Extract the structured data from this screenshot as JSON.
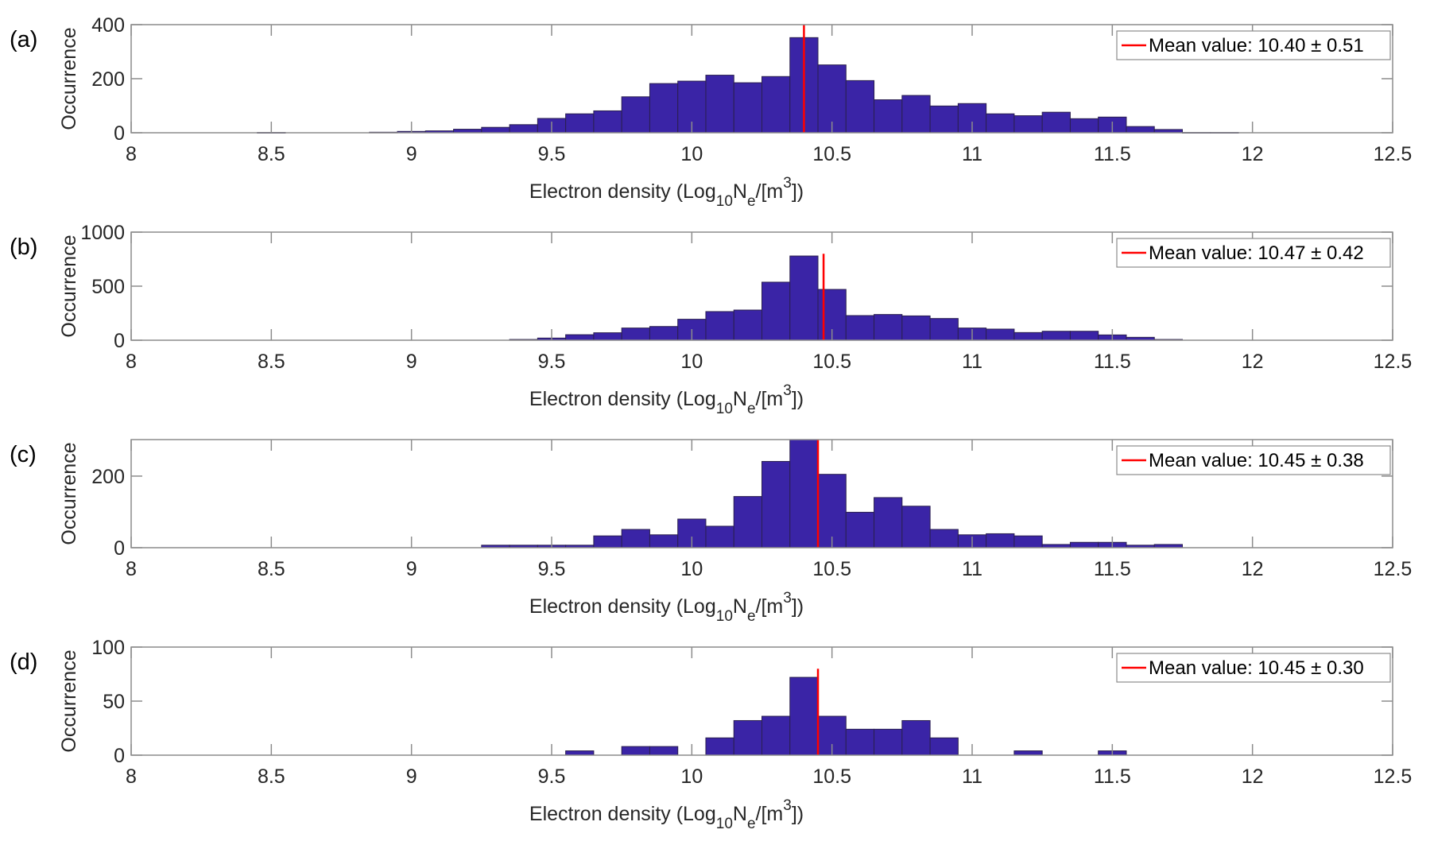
{
  "figure": {
    "bar_color": "#3A24A6",
    "bar_edge_color": "#2A1F4F",
    "mean_line_color": "#FF0000",
    "axis_color": "#8C8C8C"
  },
  "chart_data": [
    {
      "type": "bar",
      "panel_label": "(a)",
      "title": "",
      "xlabel": "Electron density (Log10 Ne/[m3])",
      "xlabel_parts": {
        "main": "Electron density (Log",
        "sub1": "10",
        "mid": "N",
        "sub2": "e",
        "tail": "/[m",
        "sup": "3",
        "end": "])"
      },
      "ylabel": "Occurrence",
      "xlim": [
        8,
        12.5
      ],
      "ylim": [
        0,
        400
      ],
      "xticks": [
        "8",
        "8.5",
        "9",
        "9.5",
        "10",
        "10.5",
        "11",
        "11.5",
        "12",
        "12.5"
      ],
      "yticks": [
        "0",
        "200",
        "400"
      ],
      "bin_width": 0.1,
      "bin_centers": [
        8.5,
        8.9,
        9.0,
        9.1,
        9.2,
        9.3,
        9.4,
        9.5,
        9.6,
        9.7,
        9.8,
        9.9,
        10.0,
        10.1,
        10.2,
        10.3,
        10.4,
        10.5,
        10.6,
        10.7,
        10.8,
        10.9,
        11.0,
        11.1,
        11.2,
        11.3,
        11.4,
        11.5,
        11.6,
        11.7,
        11.8,
        11.9
      ],
      "values": [
        1,
        2,
        5,
        7,
        13,
        20,
        30,
        53,
        70,
        81,
        133,
        182,
        191,
        213,
        185,
        208,
        352,
        251,
        193,
        122,
        138,
        99,
        108,
        70,
        63,
        76,
        52,
        58,
        23,
        12,
        1,
        1
      ],
      "mean": 10.4,
      "std": 0.51,
      "mean_line_top": 400,
      "legend": "Mean value: 10.40 ± 0.51",
      "legend_position": "top-right"
    },
    {
      "type": "bar",
      "panel_label": "(b)",
      "title": "",
      "xlabel": "Electron density (Log10 Ne/[m3])",
      "xlabel_parts": {
        "main": "Electron density (Log",
        "sub1": "10",
        "mid": "N",
        "sub2": "e",
        "tail": "/[m",
        "sup": "3",
        "end": "])"
      },
      "ylabel": "Occurrence",
      "xlim": [
        8,
        12.5
      ],
      "ylim": [
        0,
        1000
      ],
      "xticks": [
        "8",
        "8.5",
        "9",
        "9.5",
        "10",
        "10.5",
        "11",
        "11.5",
        "12",
        "12.5"
      ],
      "yticks": [
        "0",
        "500",
        "1000"
      ],
      "bin_width": 0.1,
      "bin_centers": [
        9.4,
        9.5,
        9.6,
        9.7,
        9.8,
        9.9,
        10.0,
        10.1,
        10.2,
        10.3,
        10.4,
        10.5,
        10.6,
        10.7,
        10.8,
        10.9,
        11.0,
        11.1,
        11.2,
        11.3,
        11.4,
        11.5,
        11.6,
        11.7
      ],
      "values": [
        7,
        20,
        51,
        69,
        113,
        127,
        194,
        265,
        279,
        537,
        779,
        470,
        228,
        238,
        225,
        201,
        113,
        103,
        71,
        83,
        83,
        49,
        27,
        7
      ],
      "mean": 10.47,
      "std": 0.42,
      "mean_line_top": 800,
      "legend": "Mean value: 10.47 ± 0.42",
      "legend_position": "top-right"
    },
    {
      "type": "bar",
      "panel_label": "(c)",
      "title": "",
      "xlabel": "Electron density (Log10 Ne/[m3])",
      "xlabel_parts": {
        "main": "Electron density (Log",
        "sub1": "10",
        "mid": "N",
        "sub2": "e",
        "tail": "/[m",
        "sup": "3",
        "end": "])"
      },
      "ylabel": "Occurrence",
      "xlim": [
        8,
        12.5
      ],
      "ylim": [
        0,
        302
      ],
      "xticks": [
        "8",
        "8.5",
        "9",
        "9.5",
        "10",
        "10.5",
        "11",
        "11.5",
        "12",
        "12.5"
      ],
      "yticks": [
        "0",
        "200"
      ],
      "ytick_values": [
        0,
        200
      ],
      "bin_width": 0.1,
      "bin_centers": [
        9.3,
        9.4,
        9.5,
        9.6,
        9.7,
        9.8,
        9.9,
        10.0,
        10.1,
        10.2,
        10.3,
        10.4,
        10.5,
        10.6,
        10.7,
        10.8,
        10.9,
        11.0,
        11.1,
        11.2,
        11.3,
        11.4,
        11.5,
        11.6,
        11.7
      ],
      "values": [
        7,
        7,
        7,
        7,
        33,
        51,
        36,
        80,
        60,
        143,
        241,
        302,
        205,
        99,
        140,
        116,
        51,
        36,
        39,
        33,
        9,
        15,
        15,
        7,
        9
      ],
      "mean": 10.45,
      "std": 0.38,
      "mean_line_top": 302,
      "legend": "Mean value: 10.45 ± 0.38",
      "legend_position": "top-right"
    },
    {
      "type": "bar",
      "panel_label": "(d)",
      "title": "",
      "xlabel": "Electron density (Log10 Ne/[m3])",
      "xlabel_parts": {
        "main": "Electron density (Log",
        "sub1": "10",
        "mid": "N",
        "sub2": "e",
        "tail": "/[m",
        "sup": "3",
        "end": "])"
      },
      "ylabel": "Occurrence",
      "xlim": [
        8,
        12.5
      ],
      "ylim": [
        0,
        100
      ],
      "xticks": [
        "8",
        "8.5",
        "9",
        "9.5",
        "10",
        "10.5",
        "11",
        "11.5",
        "12",
        "12.5"
      ],
      "yticks": [
        "0",
        "50",
        "100"
      ],
      "bin_width": 0.1,
      "bin_centers": [
        9.6,
        9.8,
        9.9,
        10.1,
        10.2,
        10.3,
        10.4,
        10.5,
        10.6,
        10.7,
        10.8,
        10.9,
        11.2,
        11.5
      ],
      "values": [
        4,
        8,
        8,
        16,
        32,
        36,
        72,
        36,
        24,
        24,
        32,
        16,
        4,
        4
      ],
      "mean": 10.45,
      "std": 0.3,
      "mean_line_top": 80,
      "legend": "Mean value: 10.45 ± 0.30",
      "legend_position": "top-right"
    }
  ]
}
